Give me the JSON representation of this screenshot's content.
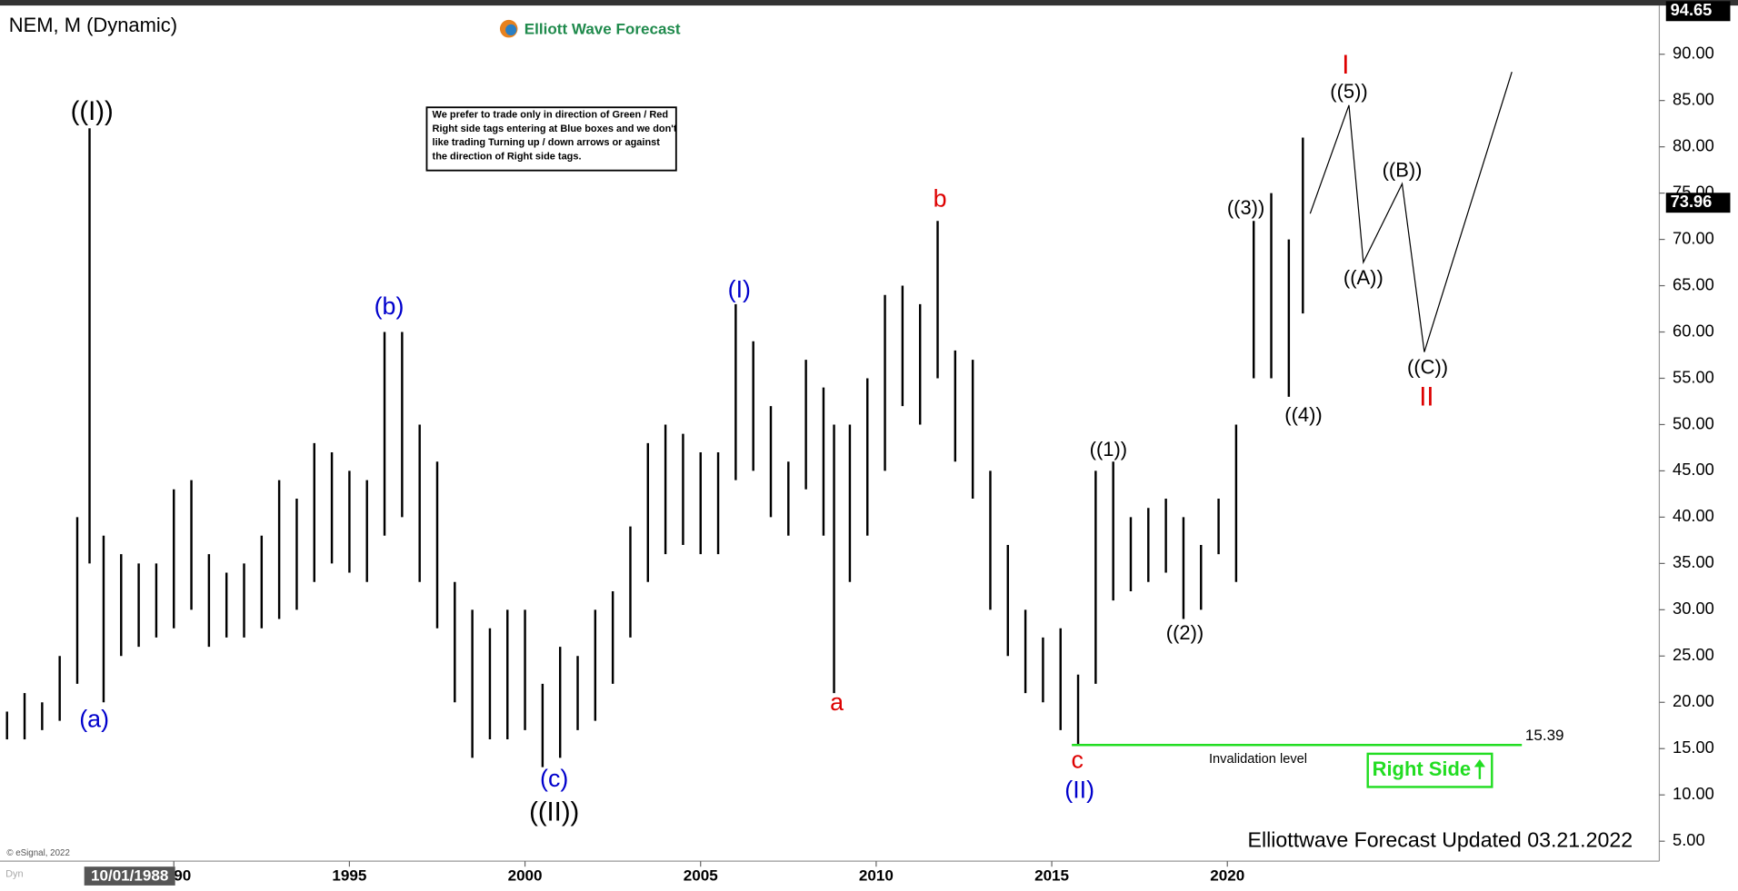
{
  "chart_data": {
    "type": "ohlc",
    "title": "NEM, M (Dynamic)",
    "brand": "Elliott Wave Forecast",
    "note": [
      "We prefer to trade only in direction of Green / Red",
      "Right side tags entering at Blue boxes and we don't",
      "like trading Turning up / down arrows or against",
      "the direction of Right side tags."
    ],
    "footer": "Elliottwave Forecast Updated 03.21.2022",
    "copyright": "© eSignal, 2022",
    "cursor_date": "10/01/1988",
    "cursor_mode": "Dyn",
    "color": "#000000",
    "x": [
      1985.25,
      1985.75,
      1986.25,
      1986.75,
      1987.25,
      1987.6,
      1988.0,
      1988.5,
      1989.0,
      1989.5,
      1990.0,
      1990.5,
      1991.0,
      1991.5,
      1992.0,
      1992.5,
      1993.0,
      1993.5,
      1994.0,
      1994.5,
      1995.0,
      1995.5,
      1996.0,
      1996.5,
      1997.0,
      1997.5,
      1998.0,
      1998.5,
      1999.0,
      1999.5,
      2000.0,
      2000.5,
      2001.0,
      2001.5,
      2002.0,
      2002.5,
      2003.0,
      2003.5,
      2004.0,
      2004.5,
      2005.0,
      2005.5,
      2006.0,
      2006.5,
      2007.0,
      2007.5,
      2008.0,
      2008.5,
      2008.8,
      2009.25,
      2009.75,
      2010.25,
      2010.75,
      2011.25,
      2011.75,
      2012.25,
      2012.75,
      2013.25,
      2013.75,
      2014.25,
      2014.75,
      2015.25,
      2015.75,
      2016.25,
      2016.75,
      2017.25,
      2017.75,
      2018.25,
      2018.75,
      2019.25,
      2019.75,
      2020.25,
      2020.75,
      2021.25,
      2021.75,
      2022.15
    ],
    "low": [
      16,
      16,
      17,
      18,
      22,
      35,
      20,
      25,
      26,
      27,
      28,
      30,
      26,
      27,
      27,
      28,
      29,
      30,
      33,
      35,
      34,
      33,
      38,
      40,
      33,
      28,
      20,
      14,
      16,
      16,
      17,
      13,
      14,
      17,
      18,
      22,
      27,
      33,
      36,
      37,
      36,
      36,
      44,
      45,
      40,
      38,
      43,
      38,
      21,
      33,
      38,
      45,
      52,
      50,
      55,
      46,
      42,
      30,
      25,
      21,
      20,
      17,
      15.4,
      22,
      31,
      32,
      33,
      34,
      29,
      30,
      36,
      33,
      55,
      55,
      53,
      62
    ],
    "high": [
      19,
      21,
      20,
      25,
      40,
      82,
      38,
      36,
      35,
      35,
      43,
      44,
      36,
      34,
      35,
      38,
      44,
      42,
      48,
      47,
      45,
      44,
      60,
      60,
      50,
      46,
      33,
      30,
      28,
      30,
      30,
      22,
      26,
      25,
      30,
      32,
      39,
      48,
      50,
      49,
      47,
      47,
      63,
      59,
      52,
      46,
      57,
      54,
      50,
      50,
      55,
      64,
      65,
      63,
      72,
      58,
      57,
      45,
      37,
      30,
      27,
      28,
      23,
      45,
      46,
      40,
      41,
      42,
      40,
      37,
      42,
      50,
      72,
      75,
      70,
      81
    ],
    "xlim": [
      1985.05,
      2032.3
    ],
    "ylim": [
      2.85,
      94.9
    ],
    "xticks": [
      1990,
      1995,
      2000,
      2005,
      2010,
      2015,
      2020
    ],
    "yticks": [
      {
        "value": 5,
        "label": "5.00"
      },
      {
        "value": 10,
        "label": "10.00"
      },
      {
        "value": 15,
        "label": "15.00"
      },
      {
        "value": 20,
        "label": "20.00"
      },
      {
        "value": 25,
        "label": "25.00"
      },
      {
        "value": 30,
        "label": "30.00"
      },
      {
        "value": 35,
        "label": "35.00"
      },
      {
        "value": 40,
        "label": "40.00"
      },
      {
        "value": 45,
        "label": "45.00"
      },
      {
        "value": 50,
        "label": "50.00"
      },
      {
        "value": 55,
        "label": "55.00"
      },
      {
        "value": 60,
        "label": "60.00"
      },
      {
        "value": 65,
        "label": "65.00"
      },
      {
        "value": 70,
        "label": "70.00"
      },
      {
        "value": 75,
        "label": "75.00"
      },
      {
        "value": 80,
        "label": "80.00"
      },
      {
        "value": 85,
        "label": "85.00"
      },
      {
        "value": 90,
        "label": "90.00"
      }
    ],
    "top_price": 94.65,
    "last_price": 73.96,
    "invalidation": 15.39,
    "invalidation_label": "Invalidation level",
    "right_side": "Right Side",
    "annotations": [
      {
        "text": "((I))",
        "color": "#000000"
      },
      {
        "text": "(a)",
        "color": "#0000cc"
      },
      {
        "text": "(b)",
        "color": "#0000cc"
      },
      {
        "text": "(c)",
        "color": "#0000cc"
      },
      {
        "text": "((II))",
        "color": "#000000"
      },
      {
        "text": "(I)",
        "color": "#0000cc"
      },
      {
        "text": "a",
        "color": "#dd0000"
      },
      {
        "text": "b",
        "color": "#dd0000"
      },
      {
        "text": "c",
        "color": "#dd0000"
      },
      {
        "text": "(II)",
        "color": "#0000cc"
      },
      {
        "text": "((1))",
        "color": "#000000"
      },
      {
        "text": "((2))",
        "color": "#000000"
      },
      {
        "text": "((3))",
        "color": "#000000"
      },
      {
        "text": "((4))",
        "color": "#000000"
      },
      {
        "text": "((5))",
        "color": "#000000"
      },
      {
        "text": "I",
        "color": "#dd0000"
      },
      {
        "text": "((A))",
        "color": "#000000"
      },
      {
        "text": "((B))",
        "color": "#000000"
      },
      {
        "text": "((C))",
        "color": "#000000"
      },
      {
        "text": "II",
        "color": "#dd0000"
      }
    ]
  }
}
